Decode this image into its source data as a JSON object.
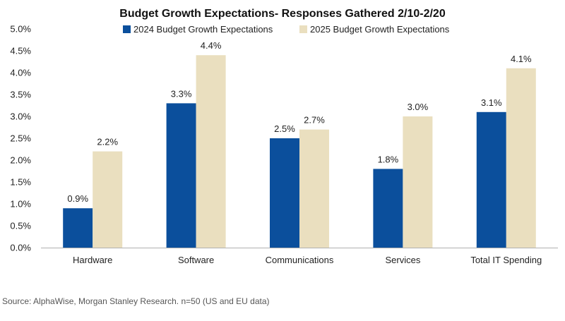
{
  "chart_data": {
    "type": "bar",
    "title": "Budget Growth Expectations- Responses Gathered 2/10-2/20",
    "categories": [
      "Hardware",
      "Software",
      "Communications",
      "Services",
      "Total IT Spending"
    ],
    "series": [
      {
        "name": "2024 Budget Growth Expectations",
        "color": "#0b4f9c",
        "values": [
          0.9,
          3.3,
          2.5,
          1.8,
          3.1
        ],
        "labels": [
          "0.9%",
          "3.3%",
          "2.5%",
          "1.8%",
          "3.1%"
        ]
      },
      {
        "name": "2025 Budget Growth Expectations",
        "color": "#eadfbf",
        "values": [
          2.2,
          4.4,
          2.7,
          3.0,
          4.1
        ],
        "labels": [
          "2.2%",
          "4.4%",
          "2.7%",
          "3.0%",
          "4.1%"
        ]
      }
    ],
    "ylim": [
      0,
      5
    ],
    "yticks": [
      0,
      0.5,
      1,
      1.5,
      2,
      2.5,
      3,
      3.5,
      4,
      4.5,
      5
    ],
    "ytick_labels": [
      "0.0%",
      "0.5%",
      "1.0%",
      "1.5%",
      "2.0%",
      "2.5%",
      "3.0%",
      "3.5%",
      "4.0%",
      "4.5%",
      "5.0%"
    ],
    "xlabel": "",
    "ylabel": "",
    "grid": false,
    "legend_position": "top"
  },
  "source": "Source: AlphaWise, Morgan Stanley Research. n=50 (US and EU data)"
}
